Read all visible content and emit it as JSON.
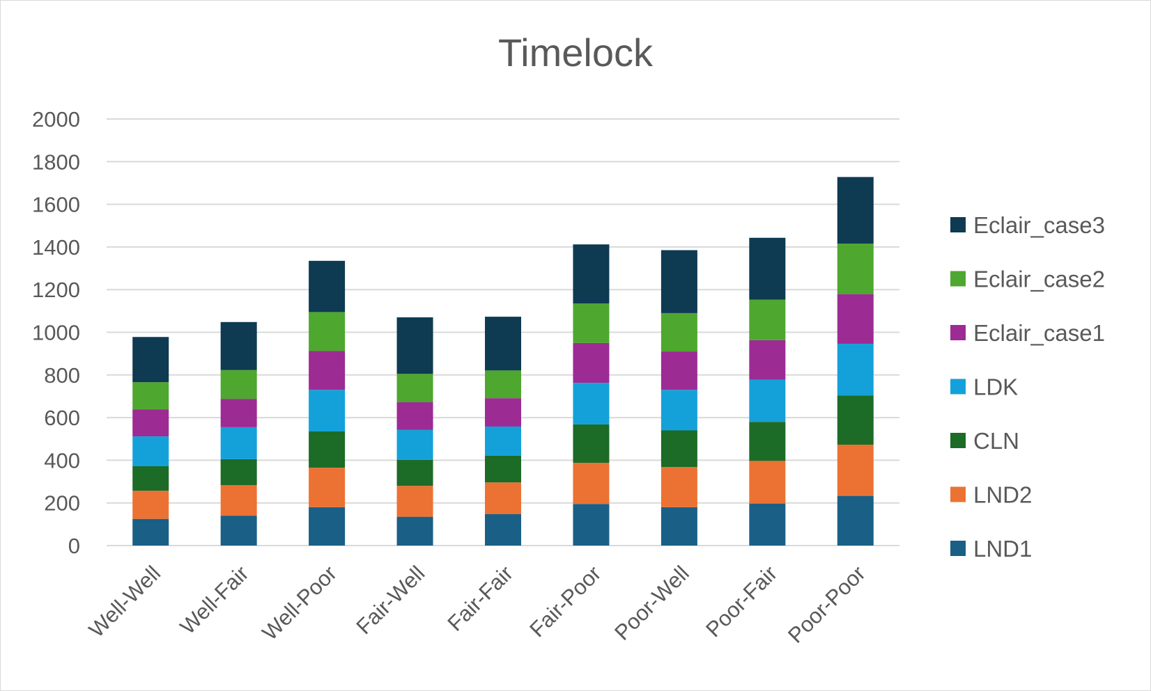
{
  "chart_data": {
    "type": "bar",
    "stacked": true,
    "title": "Timelock",
    "xlabel": "",
    "ylabel": "",
    "ylim": [
      0,
      2000
    ],
    "yticks": [
      0,
      200,
      400,
      600,
      800,
      1000,
      1200,
      1400,
      1600,
      1800,
      2000
    ],
    "grid": true,
    "legend_position": "right",
    "categories": [
      "Well-Well",
      "Well-Fair",
      "Well-Poor",
      "Fair-Well",
      "Fair-Fair",
      "Fair-Poor",
      "Poor-Well",
      "Poor-Fair",
      "Poor-Poor"
    ],
    "series": [
      {
        "name": "LND1",
        "color": "#1a5f86",
        "values": [
          125,
          140,
          180,
          135,
          148,
          195,
          180,
          197,
          233
        ]
      },
      {
        "name": "LND2",
        "color": "#eb7233",
        "values": [
          132,
          143,
          185,
          145,
          148,
          193,
          188,
          200,
          240
        ]
      },
      {
        "name": "CLN",
        "color": "#1c6b27",
        "values": [
          115,
          122,
          170,
          122,
          125,
          180,
          172,
          183,
          230
        ]
      },
      {
        "name": "LDK",
        "color": "#14a1d9",
        "values": [
          140,
          150,
          195,
          140,
          137,
          195,
          190,
          198,
          243
        ]
      },
      {
        "name": "Eclair_case1",
        "color": "#9d2b94",
        "values": [
          127,
          133,
          182,
          130,
          133,
          187,
          180,
          185,
          233
        ]
      },
      {
        "name": "Eclair_case2",
        "color": "#4ea72f",
        "values": [
          127,
          135,
          183,
          133,
          130,
          185,
          180,
          190,
          237
        ]
      },
      {
        "name": "Eclair_case3",
        "color": "#0e3a52",
        "values": [
          212,
          225,
          240,
          265,
          252,
          277,
          295,
          290,
          312
        ]
      }
    ]
  }
}
